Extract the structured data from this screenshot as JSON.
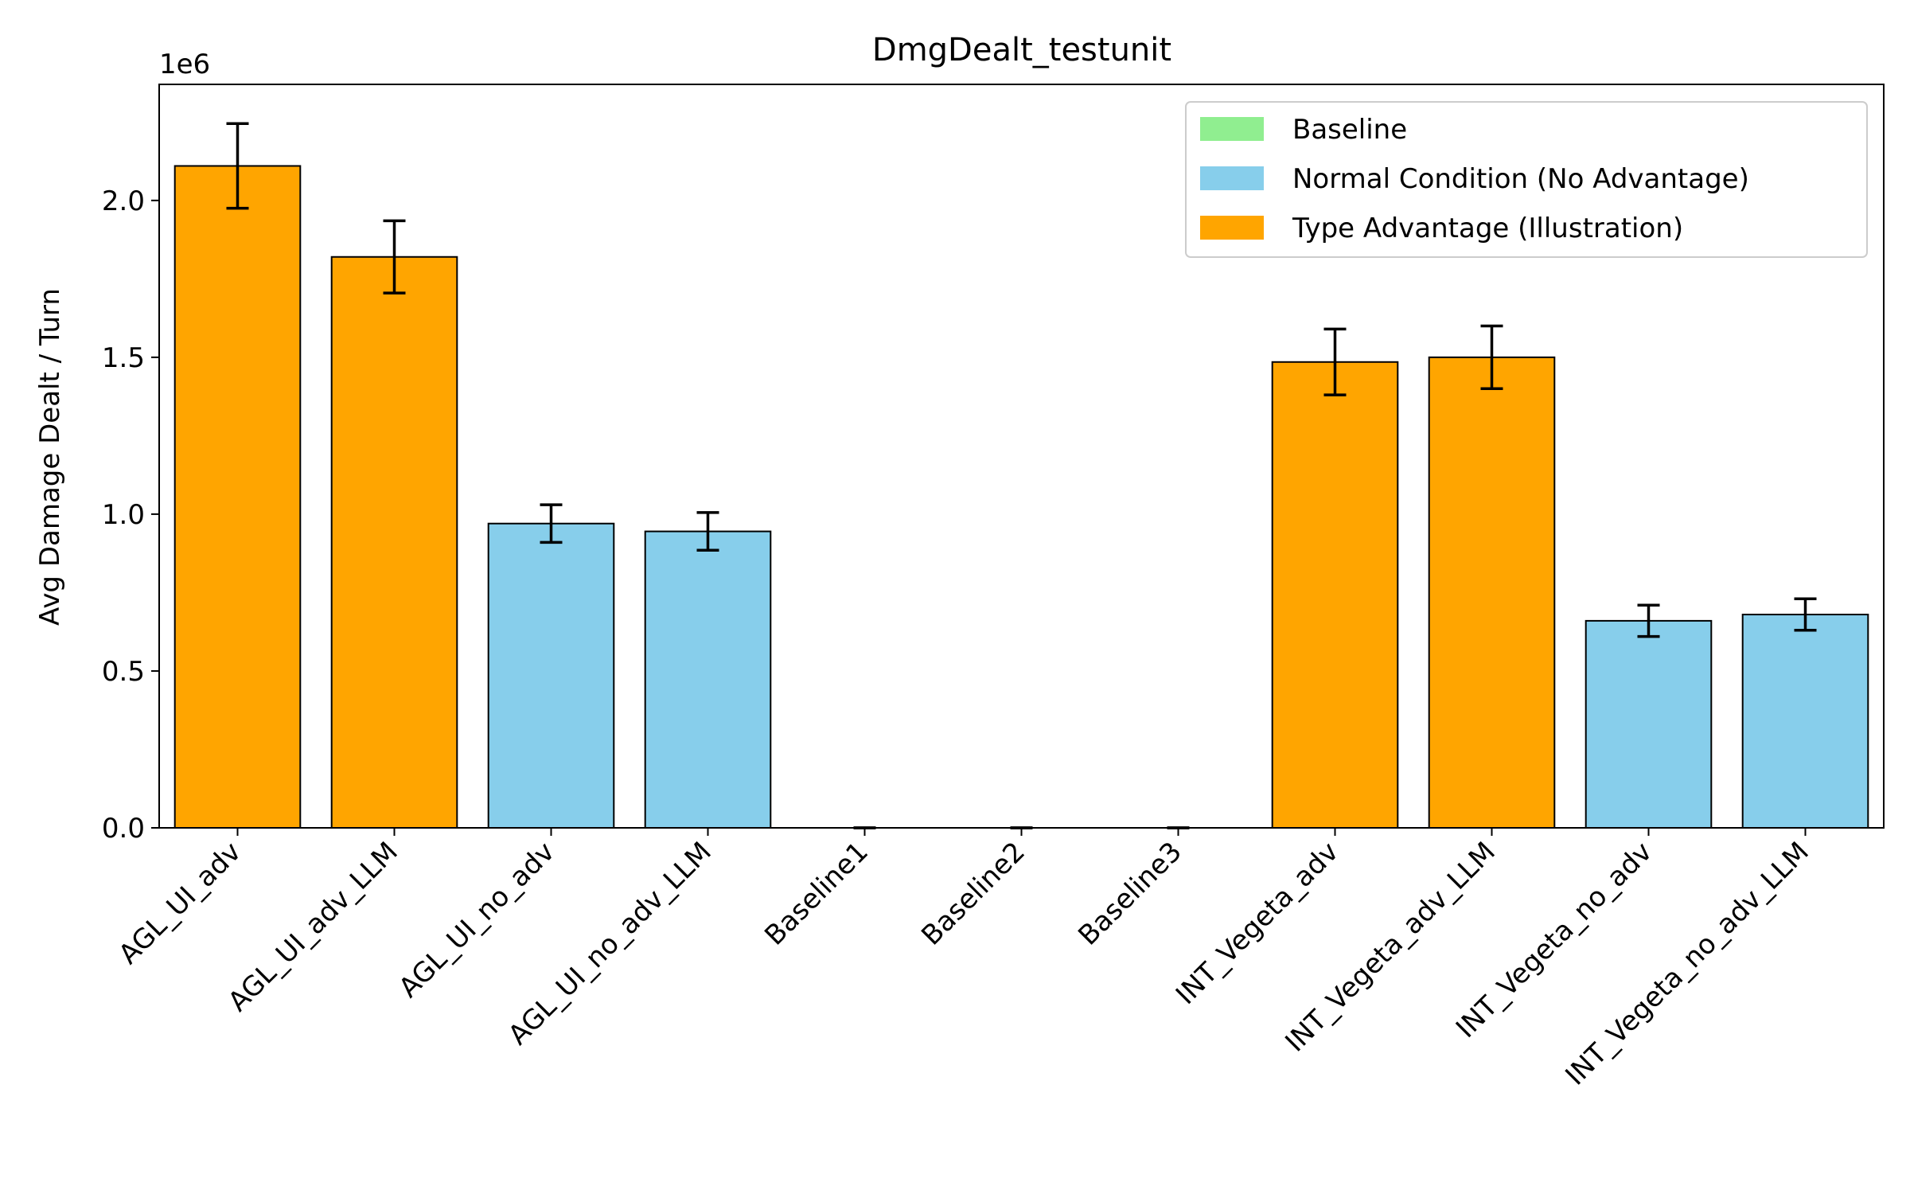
{
  "chart_data": {
    "type": "bar",
    "title": "DmgDealt_testunit",
    "ylabel": "Avg Damage Dealt / Turn",
    "xlabel": "",
    "y_scale_label": "1e6",
    "ylim": [
      0,
      2.37
    ],
    "yticks": [
      {
        "value": 0.0,
        "label": "0.0"
      },
      {
        "value": 0.5,
        "label": "0.5"
      },
      {
        "value": 1.0,
        "label": "1.0"
      },
      {
        "value": 1.5,
        "label": "1.5"
      },
      {
        "value": 2.0,
        "label": "2.0"
      }
    ],
    "grid": false,
    "legend_position": "top-right",
    "legend": [
      {
        "label": "Baseline",
        "color": "#90ee90"
      },
      {
        "label": "Normal Condition (No Advantage)",
        "color": "#87ceeb"
      },
      {
        "label": "Type Advantage (Illustration)",
        "color": "#ffa500"
      }
    ],
    "categories": [
      "AGL_UI_adv",
      "AGL_UI_adv_LLM",
      "AGL_UI_no_adv",
      "AGL_UI_no_adv_LLM",
      "Baseline1",
      "Baseline2",
      "Baseline3",
      "INT_Vegeta_adv",
      "INT_Vegeta_adv_LLM",
      "INT_Vegeta_no_adv",
      "INT_Vegeta_no_adv_LLM"
    ],
    "values": [
      2.11,
      1.82,
      0.97,
      0.945,
      0.0,
      0.0,
      0.0,
      1.485,
      1.5,
      0.66,
      0.68
    ],
    "errors": [
      0.135,
      0.115,
      0.06,
      0.06,
      0.0,
      0.0,
      0.0,
      0.105,
      0.1,
      0.05,
      0.05
    ],
    "groups": [
      "adv",
      "adv",
      "noadv",
      "noadv",
      "baseline",
      "baseline",
      "baseline",
      "adv",
      "adv",
      "noadv",
      "noadv"
    ],
    "colors": {
      "baseline": "#90ee90",
      "noadv": "#87ceeb",
      "adv": "#ffa500",
      "edge": "#000000"
    }
  }
}
